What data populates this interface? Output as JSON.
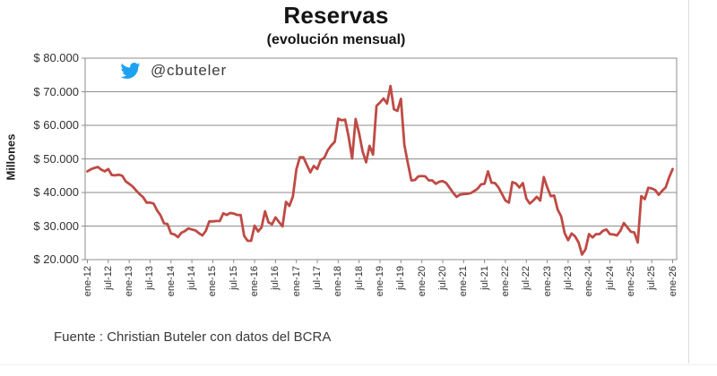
{
  "chart": {
    "title": "Reservas",
    "subtitle": "(evolución mensual)",
    "y_axis_title": "Millones",
    "twitter_handle": "@cbuteler",
    "source": "Fuente : Christian Buteler con datos del BCRA"
  },
  "colors": {
    "line": "#bf4a45",
    "grid": "#8c8c8c",
    "axis": "#8c8c8c",
    "twitter_blue": "#1da1f2",
    "text": "#303030"
  },
  "chart_data": {
    "type": "line",
    "title": "Reservas",
    "subtitle": "(evolución mensual)",
    "ylabel": "Millones",
    "unit": "millones de USD",
    "frequency": "mensual",
    "period_start": "ene-12",
    "period_end": "ene-26",
    "ylim": [
      20000,
      80000
    ],
    "y_tick_step": 10000,
    "grid": true,
    "y_ticks": [
      {
        "label": "$ 80.000",
        "value": 80000
      },
      {
        "label": "$ 70.000",
        "value": 70000
      },
      {
        "label": "$ 60.000",
        "value": 60000
      },
      {
        "label": "$ 50.000",
        "value": 50000
      },
      {
        "label": "$ 40.000",
        "value": 40000
      },
      {
        "label": "$ 30.000",
        "value": 30000
      },
      {
        "label": "$ 20.000",
        "value": 20000
      }
    ],
    "x_tick_labels": [
      "ene-12",
      "jul-12",
      "ene-13",
      "jul-13",
      "ene-14",
      "jul-14",
      "ene-15",
      "jul-15",
      "ene-16",
      "jul-16",
      "ene-17",
      "jul-17",
      "ene-18",
      "jul-18",
      "ene-19",
      "jul-19",
      "ene-20",
      "jul-20",
      "ene-21",
      "jul-21",
      "ene-22",
      "jul-22",
      "ene-23",
      "jul-23",
      "ene-24",
      "jul-24",
      "ene-25",
      "jul-25",
      "ene-26"
    ],
    "x_ticks_every_n_points": 6,
    "series": [
      {
        "name": "Reservas",
        "values": [
          46300,
          46900,
          47300,
          47600,
          46800,
          46300,
          47000,
          45200,
          45100,
          45300,
          45000,
          43300,
          42600,
          41800,
          40600,
          39500,
          38600,
          37000,
          37000,
          36700,
          34700,
          33200,
          30800,
          30600,
          27800,
          27500,
          26700,
          28000,
          28500,
          29300,
          29000,
          28700,
          27900,
          27200,
          28600,
          31400,
          31400,
          31500,
          31500,
          33800,
          33300,
          33900,
          33700,
          33300,
          33300,
          27100,
          25600,
          25600,
          30100,
          28400,
          29600,
          34400,
          31100,
          30500,
          32600,
          31200,
          29900,
          37200,
          36000,
          38800,
          46900,
          50500,
          50500,
          48200,
          46000,
          47900,
          47000,
          49700,
          50300,
          52600,
          54000,
          55100,
          62000,
          61500,
          61700,
          56600,
          50100,
          61900,
          57600,
          52200,
          49000,
          53900,
          51300,
          65800,
          66800,
          68000,
          66500,
          71700,
          64800,
          64300,
          67900,
          54100,
          48700,
          43600,
          43700,
          44800,
          44900,
          44800,
          43600,
          43600,
          42600,
          43200,
          43400,
          42800,
          41400,
          39900,
          38700,
          39400,
          39500,
          39600,
          39800,
          40400,
          41100,
          42400,
          42600,
          46300,
          42900,
          42800,
          41500,
          39600,
          37600,
          37000,
          43100,
          42700,
          41500,
          42800,
          38200,
          36700,
          37600,
          38700,
          37600,
          44600,
          41500,
          38900,
          39100,
          34900,
          32900,
          27900,
          25800,
          27800,
          26900,
          25100,
          21500,
          23100,
          27600,
          26600,
          27600,
          27600,
          28600,
          29000,
          27600,
          27500,
          27200,
          28600,
          30900,
          29600,
          28300,
          28100,
          25100,
          38900,
          38000,
          41400,
          41200,
          40700,
          39300,
          40500,
          41500,
          44500,
          47000
        ]
      }
    ]
  }
}
